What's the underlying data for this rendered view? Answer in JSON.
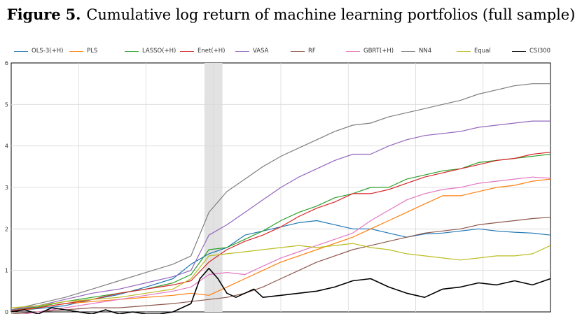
{
  "figure": {
    "label": "Figure 5.",
    "title": "Cumulative log return of machine learning portfolios (full sample)"
  },
  "chart_data": {
    "type": "line",
    "title": "Figure 5. Cumulative log return of machine learning portfolios (full sample)",
    "xlabel": "",
    "ylabel": "",
    "xlim": [
      0,
      120
    ],
    "ylim": [
      0,
      6
    ],
    "yticks": [
      0,
      1,
      2,
      3,
      4,
      5,
      6
    ],
    "grid": true,
    "legend_position": "top",
    "shaded_region": [
      43,
      47
    ],
    "series": [
      {
        "name": "OLS-3(+H)",
        "color": "#1f77b4",
        "points": [
          [
            0,
            0.02
          ],
          [
            6,
            0.08
          ],
          [
            12,
            0.15
          ],
          [
            18,
            0.3
          ],
          [
            24,
            0.42
          ],
          [
            30,
            0.6
          ],
          [
            36,
            0.8
          ],
          [
            40,
            1.15
          ],
          [
            44,
            1.4
          ],
          [
            48,
            1.55
          ],
          [
            52,
            1.85
          ],
          [
            56,
            1.95
          ],
          [
            60,
            2.05
          ],
          [
            64,
            2.15
          ],
          [
            68,
            2.2
          ],
          [
            72,
            2.1
          ],
          [
            76,
            2.0
          ],
          [
            80,
            2.0
          ],
          [
            84,
            1.9
          ],
          [
            88,
            1.8
          ],
          [
            92,
            1.88
          ],
          [
            96,
            1.9
          ],
          [
            100,
            1.95
          ],
          [
            104,
            2.0
          ],
          [
            108,
            1.95
          ],
          [
            112,
            1.92
          ],
          [
            116,
            1.9
          ],
          [
            120,
            1.85
          ]
        ]
      },
      {
        "name": "PLS",
        "color": "#ff7f0e",
        "points": [
          [
            0,
            0.0
          ],
          [
            6,
            0.1
          ],
          [
            12,
            0.2
          ],
          [
            18,
            0.25
          ],
          [
            24,
            0.3
          ],
          [
            30,
            0.35
          ],
          [
            36,
            0.4
          ],
          [
            40,
            0.45
          ],
          [
            44,
            0.4
          ],
          [
            48,
            0.6
          ],
          [
            52,
            0.8
          ],
          [
            56,
            1.0
          ],
          [
            60,
            1.2
          ],
          [
            64,
            1.35
          ],
          [
            68,
            1.5
          ],
          [
            72,
            1.65
          ],
          [
            76,
            1.8
          ],
          [
            80,
            2.0
          ],
          [
            84,
            2.2
          ],
          [
            88,
            2.4
          ],
          [
            92,
            2.6
          ],
          [
            96,
            2.8
          ],
          [
            100,
            2.8
          ],
          [
            104,
            2.9
          ],
          [
            108,
            3.0
          ],
          [
            112,
            3.05
          ],
          [
            116,
            3.15
          ],
          [
            120,
            3.2
          ]
        ]
      },
      {
        "name": "LASSO(+H)",
        "color": "#2ca02c",
        "points": [
          [
            0,
            0.05
          ],
          [
            6,
            0.12
          ],
          [
            12,
            0.25
          ],
          [
            18,
            0.35
          ],
          [
            24,
            0.45
          ],
          [
            30,
            0.55
          ],
          [
            36,
            0.7
          ],
          [
            40,
            0.9
          ],
          [
            44,
            1.5
          ],
          [
            48,
            1.55
          ],
          [
            52,
            1.75
          ],
          [
            56,
            1.95
          ],
          [
            60,
            2.2
          ],
          [
            64,
            2.4
          ],
          [
            68,
            2.55
          ],
          [
            72,
            2.75
          ],
          [
            76,
            2.85
          ],
          [
            80,
            3.0
          ],
          [
            84,
            3.0
          ],
          [
            88,
            3.2
          ],
          [
            92,
            3.3
          ],
          [
            96,
            3.4
          ],
          [
            100,
            3.45
          ],
          [
            104,
            3.6
          ],
          [
            108,
            3.65
          ],
          [
            112,
            3.7
          ],
          [
            116,
            3.75
          ],
          [
            120,
            3.8
          ]
        ]
      },
      {
        "name": "Enet(+H)",
        "color": "#d62728",
        "points": [
          [
            0,
            0.03
          ],
          [
            6,
            0.1
          ],
          [
            12,
            0.2
          ],
          [
            18,
            0.3
          ],
          [
            24,
            0.45
          ],
          [
            30,
            0.55
          ],
          [
            36,
            0.65
          ],
          [
            40,
            0.75
          ],
          [
            44,
            1.2
          ],
          [
            48,
            1.5
          ],
          [
            52,
            1.7
          ],
          [
            56,
            1.85
          ],
          [
            60,
            2.05
          ],
          [
            64,
            2.3
          ],
          [
            68,
            2.5
          ],
          [
            72,
            2.65
          ],
          [
            76,
            2.85
          ],
          [
            80,
            2.85
          ],
          [
            84,
            2.95
          ],
          [
            88,
            3.1
          ],
          [
            92,
            3.25
          ],
          [
            96,
            3.35
          ],
          [
            100,
            3.45
          ],
          [
            104,
            3.55
          ],
          [
            108,
            3.65
          ],
          [
            112,
            3.7
          ],
          [
            116,
            3.8
          ],
          [
            120,
            3.85
          ]
        ]
      },
      {
        "name": "VASA",
        "color": "#9467bd",
        "points": [
          [
            0,
            0.05
          ],
          [
            6,
            0.15
          ],
          [
            12,
            0.3
          ],
          [
            18,
            0.45
          ],
          [
            24,
            0.55
          ],
          [
            30,
            0.7
          ],
          [
            36,
            0.85
          ],
          [
            40,
            1.0
          ],
          [
            44,
            1.85
          ],
          [
            48,
            2.1
          ],
          [
            52,
            2.4
          ],
          [
            56,
            2.7
          ],
          [
            60,
            3.0
          ],
          [
            64,
            3.25
          ],
          [
            68,
            3.45
          ],
          [
            72,
            3.65
          ],
          [
            76,
            3.8
          ],
          [
            80,
            3.8
          ],
          [
            84,
            4.0
          ],
          [
            88,
            4.15
          ],
          [
            92,
            4.25
          ],
          [
            96,
            4.3
          ],
          [
            100,
            4.35
          ],
          [
            104,
            4.45
          ],
          [
            108,
            4.5
          ],
          [
            112,
            4.55
          ],
          [
            116,
            4.6
          ],
          [
            120,
            4.6
          ]
        ]
      },
      {
        "name": "RF",
        "color": "#8c564b",
        "points": [
          [
            0,
            -0.05
          ],
          [
            6,
            0.0
          ],
          [
            12,
            0.05
          ],
          [
            18,
            0.1
          ],
          [
            24,
            0.1
          ],
          [
            30,
            0.15
          ],
          [
            36,
            0.2
          ],
          [
            40,
            0.25
          ],
          [
            44,
            0.3
          ],
          [
            48,
            0.35
          ],
          [
            52,
            0.45
          ],
          [
            56,
            0.6
          ],
          [
            60,
            0.8
          ],
          [
            64,
            1.0
          ],
          [
            68,
            1.2
          ],
          [
            72,
            1.35
          ],
          [
            76,
            1.5
          ],
          [
            80,
            1.6
          ],
          [
            84,
            1.7
          ],
          [
            88,
            1.8
          ],
          [
            92,
            1.9
          ],
          [
            96,
            1.95
          ],
          [
            100,
            2.0
          ],
          [
            104,
            2.1
          ],
          [
            108,
            2.15
          ],
          [
            112,
            2.2
          ],
          [
            116,
            2.25
          ],
          [
            120,
            2.28
          ]
        ]
      },
      {
        "name": "GBRT(+H)",
        "color": "#e377c2",
        "points": [
          [
            0,
            -0.1
          ],
          [
            6,
            0.0
          ],
          [
            12,
            0.1
          ],
          [
            18,
            0.2
          ],
          [
            24,
            0.3
          ],
          [
            30,
            0.4
          ],
          [
            36,
            0.5
          ],
          [
            40,
            0.6
          ],
          [
            44,
            0.9
          ],
          [
            48,
            0.95
          ],
          [
            52,
            0.9
          ],
          [
            56,
            1.1
          ],
          [
            60,
            1.3
          ],
          [
            64,
            1.45
          ],
          [
            68,
            1.6
          ],
          [
            72,
            1.75
          ],
          [
            76,
            1.9
          ],
          [
            80,
            2.2
          ],
          [
            84,
            2.45
          ],
          [
            88,
            2.7
          ],
          [
            92,
            2.85
          ],
          [
            96,
            2.95
          ],
          [
            100,
            3.0
          ],
          [
            104,
            3.1
          ],
          [
            108,
            3.15
          ],
          [
            112,
            3.2
          ],
          [
            116,
            3.25
          ],
          [
            120,
            3.22
          ]
        ]
      },
      {
        "name": "NN4",
        "color": "#7f7f7f",
        "points": [
          [
            0,
            0.05
          ],
          [
            6,
            0.2
          ],
          [
            12,
            0.35
          ],
          [
            18,
            0.55
          ],
          [
            24,
            0.75
          ],
          [
            30,
            0.95
          ],
          [
            36,
            1.15
          ],
          [
            40,
            1.35
          ],
          [
            44,
            2.4
          ],
          [
            48,
            2.9
          ],
          [
            52,
            3.2
          ],
          [
            56,
            3.5
          ],
          [
            60,
            3.75
          ],
          [
            64,
            3.95
          ],
          [
            68,
            4.15
          ],
          [
            72,
            4.35
          ],
          [
            76,
            4.5
          ],
          [
            80,
            4.55
          ],
          [
            84,
            4.7
          ],
          [
            88,
            4.8
          ],
          [
            92,
            4.9
          ],
          [
            96,
            5.0
          ],
          [
            100,
            5.1
          ],
          [
            104,
            5.25
          ],
          [
            108,
            5.35
          ],
          [
            112,
            5.45
          ],
          [
            116,
            5.5
          ],
          [
            120,
            5.5
          ]
        ]
      },
      {
        "name": "Equal",
        "color": "#bcbd22",
        "points": [
          [
            0,
            0.1
          ],
          [
            6,
            0.15
          ],
          [
            12,
            0.25
          ],
          [
            18,
            0.3
          ],
          [
            24,
            0.35
          ],
          [
            30,
            0.45
          ],
          [
            36,
            0.55
          ],
          [
            40,
            0.8
          ],
          [
            44,
            1.35
          ],
          [
            48,
            1.4
          ],
          [
            52,
            1.45
          ],
          [
            56,
            1.5
          ],
          [
            60,
            1.55
          ],
          [
            64,
            1.6
          ],
          [
            68,
            1.55
          ],
          [
            72,
            1.6
          ],
          [
            76,
            1.65
          ],
          [
            80,
            1.55
          ],
          [
            84,
            1.5
          ],
          [
            88,
            1.4
          ],
          [
            92,
            1.35
          ],
          [
            96,
            1.3
          ],
          [
            100,
            1.25
          ],
          [
            104,
            1.3
          ],
          [
            108,
            1.35
          ],
          [
            112,
            1.35
          ],
          [
            116,
            1.4
          ],
          [
            120,
            1.6
          ]
        ]
      },
      {
        "name": "CSI300",
        "color": "#000000",
        "points": [
          [
            0,
            0.0
          ],
          [
            3,
            0.05
          ],
          [
            6,
            -0.05
          ],
          [
            9,
            0.1
          ],
          [
            12,
            0.05
          ],
          [
            15,
            0.0
          ],
          [
            18,
            -0.05
          ],
          [
            21,
            0.05
          ],
          [
            24,
            -0.05
          ],
          [
            27,
            0.0
          ],
          [
            30,
            -0.05
          ],
          [
            33,
            -0.05
          ],
          [
            36,
            0.0
          ],
          [
            38,
            0.1
          ],
          [
            40,
            0.2
          ],
          [
            42,
            0.8
          ],
          [
            44,
            1.05
          ],
          [
            46,
            0.8
          ],
          [
            48,
            0.45
          ],
          [
            50,
            0.35
          ],
          [
            52,
            0.45
          ],
          [
            54,
            0.55
          ],
          [
            56,
            0.35
          ],
          [
            60,
            0.4
          ],
          [
            64,
            0.45
          ],
          [
            68,
            0.5
          ],
          [
            72,
            0.6
          ],
          [
            76,
            0.75
          ],
          [
            80,
            0.8
          ],
          [
            84,
            0.6
          ],
          [
            88,
            0.45
          ],
          [
            92,
            0.35
          ],
          [
            96,
            0.55
          ],
          [
            100,
            0.6
          ],
          [
            104,
            0.7
          ],
          [
            108,
            0.65
          ],
          [
            112,
            0.75
          ],
          [
            116,
            0.65
          ],
          [
            120,
            0.8
          ]
        ]
      }
    ]
  }
}
